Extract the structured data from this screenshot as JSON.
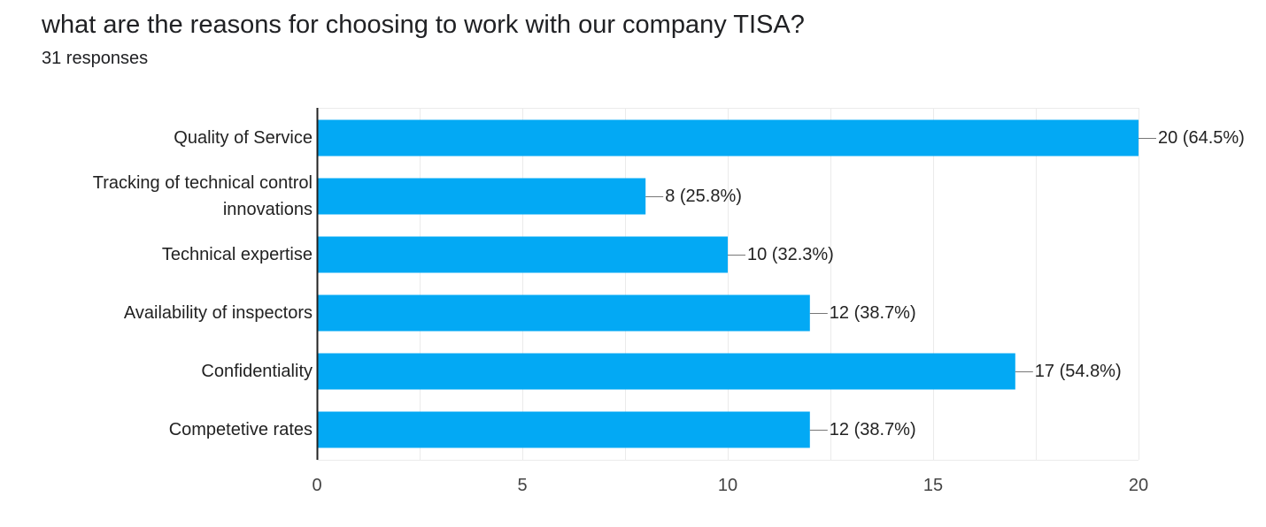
{
  "question": {
    "title": "what are the reasons for choosing to work with our company TISA?",
    "responses": "31 responses"
  },
  "colors": {
    "bar": "#03a9f4",
    "grid": "#ebebeb",
    "axis": "#222222",
    "text": "#222222"
  },
  "chart_data": {
    "type": "bar",
    "orientation": "horizontal",
    "categories": [
      [
        "Quality of Service"
      ],
      [
        "Tracking of technical control",
        "innovations"
      ],
      [
        "Technical expertise"
      ],
      [
        "Availability of inspectors"
      ],
      [
        "Confidentiality"
      ],
      [
        "Competetive rates"
      ]
    ],
    "values": [
      20,
      8,
      10,
      12,
      17,
      12
    ],
    "value_labels": [
      "20 (64.5%)",
      "8 (25.8%)",
      "10 (32.3%)",
      "12 (38.7%)",
      "17 (54.8%)",
      "12 (38.7%)"
    ],
    "xlim": [
      0,
      20
    ],
    "xticks": [
      0,
      5,
      10,
      15,
      20
    ],
    "xtick_labels": [
      "0",
      "5",
      "10",
      "15",
      "20"
    ],
    "grid": true
  }
}
